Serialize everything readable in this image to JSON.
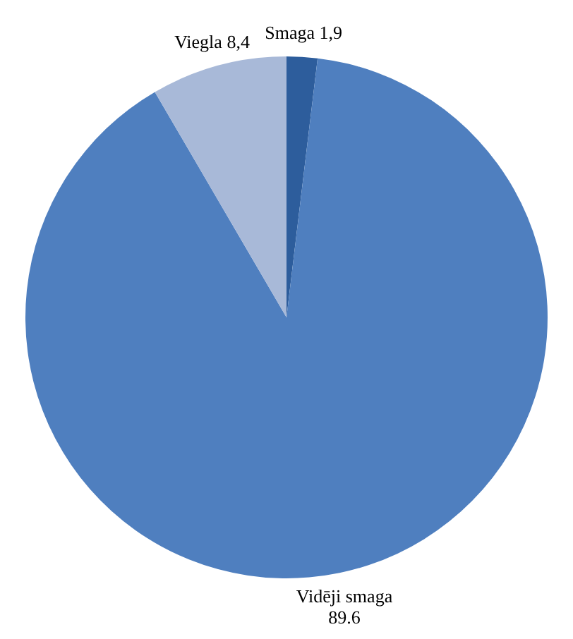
{
  "chart_data": {
    "type": "pie",
    "categories": [
      "Smaga",
      "Vidēji smaga",
      "Viegla"
    ],
    "values": [
      1.9,
      89.6,
      8.4
    ],
    "colors": [
      "#2d5d9c",
      "#4f7fbf",
      "#a8b9d8"
    ],
    "value_labels": [
      "1,9",
      "89.6",
      "8,4"
    ]
  }
}
